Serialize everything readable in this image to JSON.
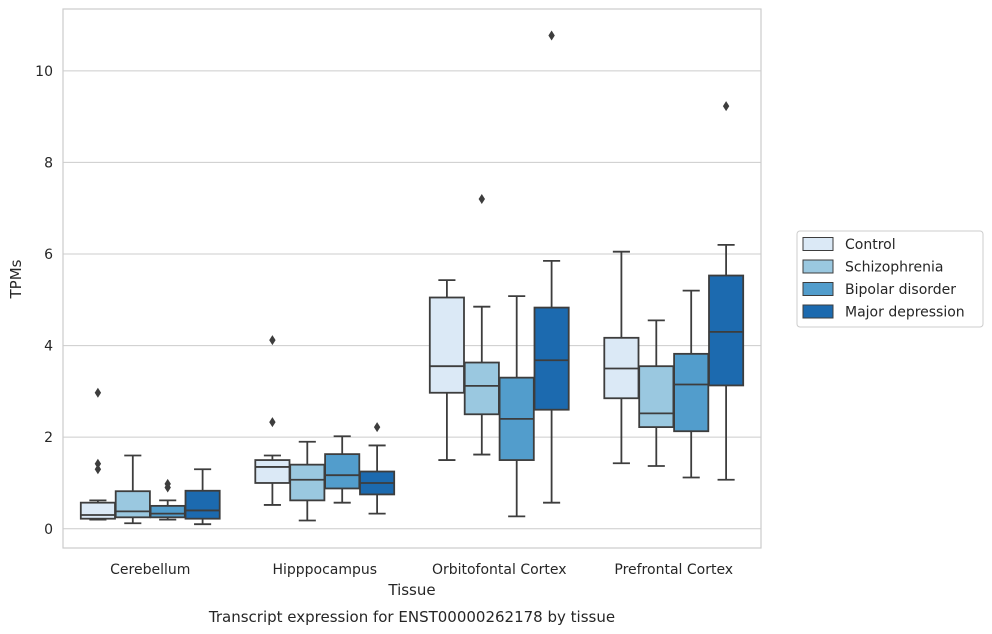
{
  "caption": "Transcript expression for ENST00000262178 by tissue",
  "chart_data": {
    "type": "boxplot",
    "xlabel": "Tissue",
    "ylabel": "TPMs",
    "ylim": [
      -0.42,
      11.35
    ],
    "yticks": [
      0,
      2,
      4,
      6,
      8,
      10
    ],
    "grid": "horizontal",
    "legend_placement": "right",
    "categories": [
      "Cerebellum",
      "Hipppocampus",
      "Orbitofontal Cortex",
      "Prefrontal Cortex"
    ],
    "series": [
      {
        "name": "Control",
        "color": "#dbe9f6",
        "boxes": [
          {
            "whislo": 0.2,
            "q1": 0.22,
            "med": 0.3,
            "q3": 0.57,
            "whishi": 0.62,
            "fliers": [
              2.97,
              1.42,
              1.3
            ]
          },
          {
            "whislo": 0.52,
            "q1": 1.0,
            "med": 1.35,
            "q3": 1.5,
            "whishi": 1.6,
            "fliers": [
              4.12,
              2.33
            ]
          },
          {
            "whislo": 1.5,
            "q1": 2.97,
            "med": 3.55,
            "q3": 5.05,
            "whishi": 5.43,
            "fliers": []
          },
          {
            "whislo": 1.43,
            "q1": 2.85,
            "med": 3.5,
            "q3": 4.17,
            "whishi": 6.05,
            "fliers": []
          }
        ]
      },
      {
        "name": "Schizophrenia",
        "color": "#9ac8e0",
        "boxes": [
          {
            "whislo": 0.12,
            "q1": 0.25,
            "med": 0.38,
            "q3": 0.82,
            "whishi": 1.6,
            "fliers": []
          },
          {
            "whislo": 0.18,
            "q1": 0.62,
            "med": 1.07,
            "q3": 1.4,
            "whishi": 1.9,
            "fliers": []
          },
          {
            "whislo": 1.62,
            "q1": 2.5,
            "med": 3.12,
            "q3": 3.63,
            "whishi": 4.85,
            "fliers": [
              7.2
            ]
          },
          {
            "whislo": 1.37,
            "q1": 2.22,
            "med": 2.52,
            "q3": 3.55,
            "whishi": 4.55,
            "fliers": []
          }
        ]
      },
      {
        "name": "Bipolar disorder",
        "color": "#529dcc",
        "boxes": [
          {
            "whislo": 0.2,
            "q1": 0.25,
            "med": 0.33,
            "q3": 0.5,
            "whishi": 0.62,
            "fliers": [
              0.98,
              0.9
            ]
          },
          {
            "whislo": 0.57,
            "q1": 0.88,
            "med": 1.17,
            "q3": 1.63,
            "whishi": 2.02,
            "fliers": []
          },
          {
            "whislo": 0.27,
            "q1": 1.5,
            "med": 2.4,
            "q3": 3.3,
            "whishi": 5.08,
            "fliers": []
          },
          {
            "whislo": 1.12,
            "q1": 2.13,
            "med": 3.15,
            "q3": 3.82,
            "whishi": 5.2,
            "fliers": []
          }
        ]
      },
      {
        "name": "Major depression",
        "color": "#1c6aaf",
        "boxes": [
          {
            "whislo": 0.1,
            "q1": 0.22,
            "med": 0.4,
            "q3": 0.83,
            "whishi": 1.3,
            "fliers": []
          },
          {
            "whislo": 0.33,
            "q1": 0.75,
            "med": 1.0,
            "q3": 1.25,
            "whishi": 1.82,
            "fliers": [
              2.22
            ]
          },
          {
            "whislo": 0.57,
            "q1": 2.6,
            "med": 3.68,
            "q3": 4.83,
            "whishi": 5.85,
            "fliers": [
              10.77
            ]
          },
          {
            "whislo": 1.07,
            "q1": 3.13,
            "med": 4.3,
            "q3": 5.53,
            "whishi": 6.2,
            "fliers": [
              9.23
            ]
          }
        ]
      }
    ]
  }
}
